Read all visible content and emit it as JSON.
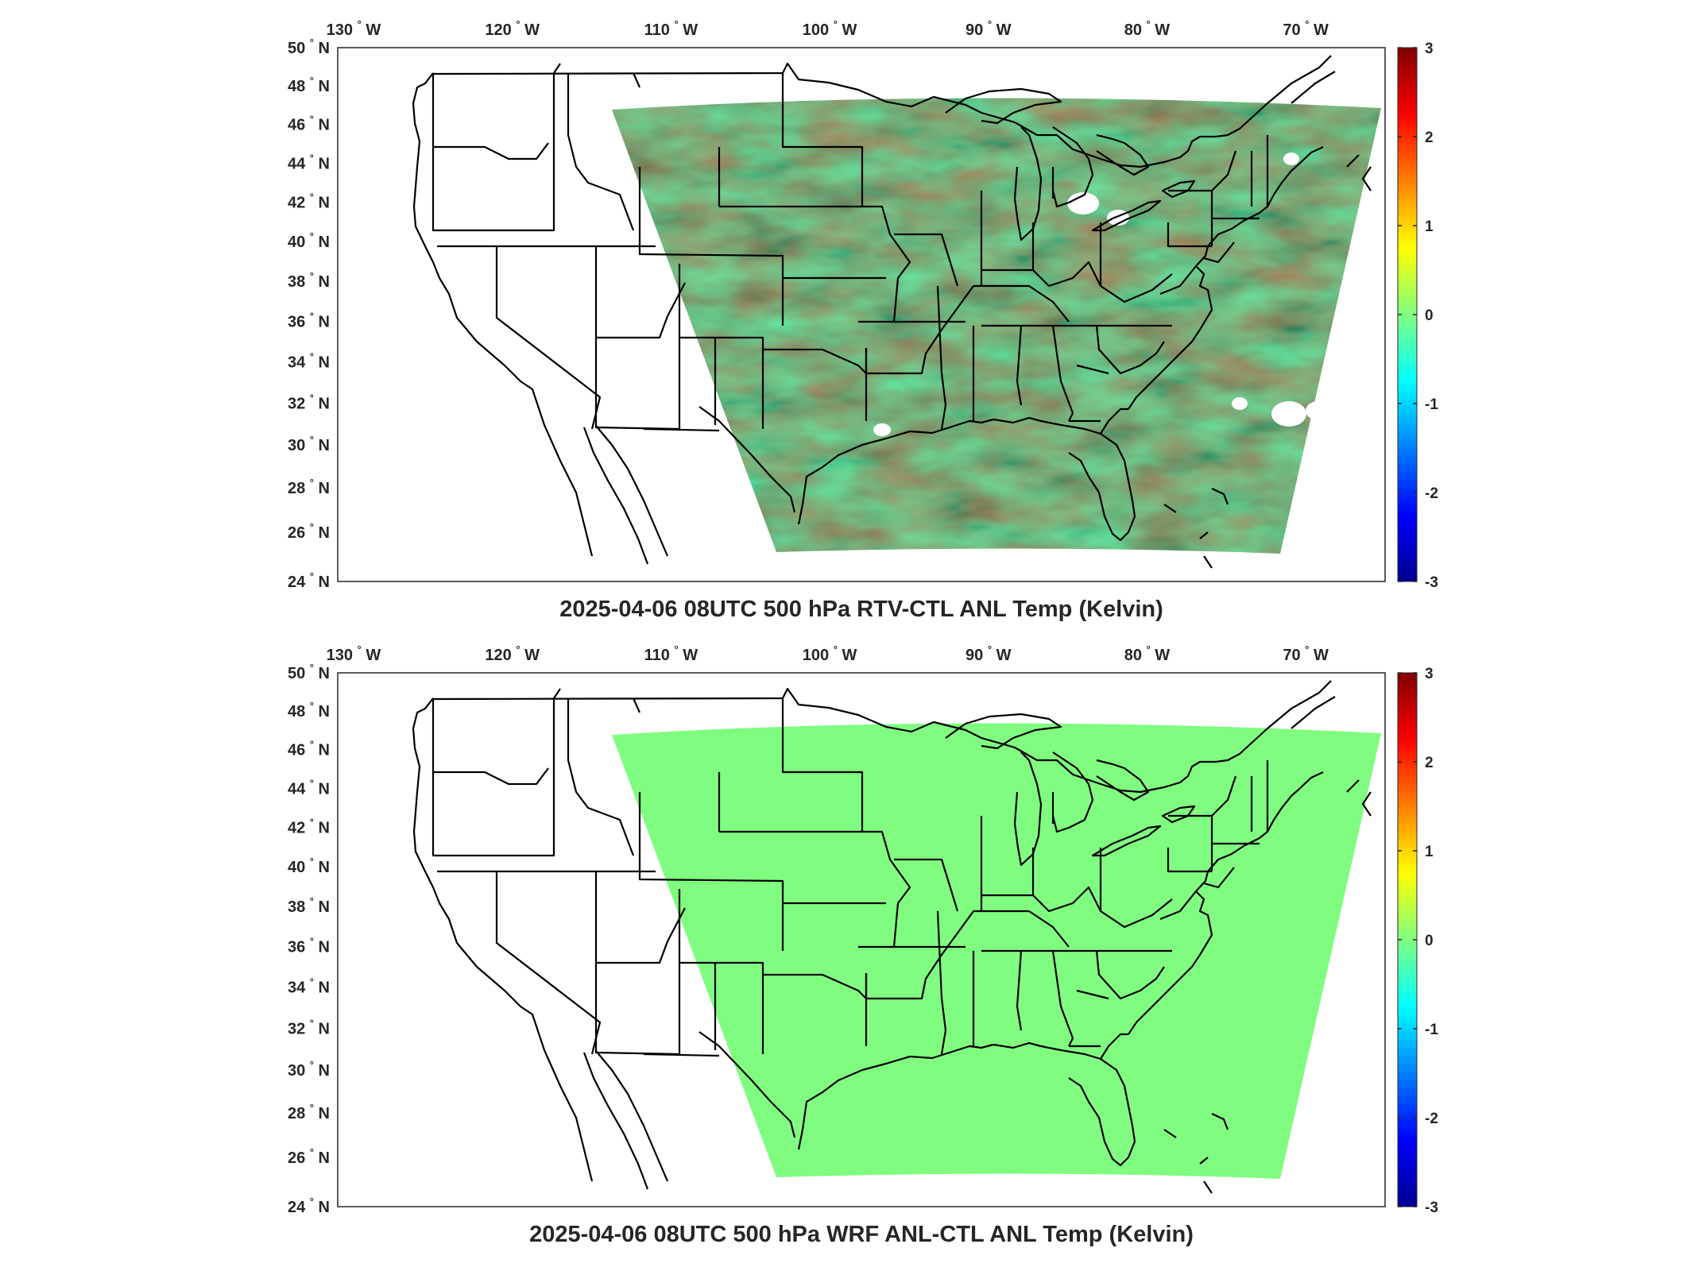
{
  "figure": {
    "panels": [
      {
        "id": "top",
        "title": "2025-04-06 08UTC 500 hPa RTV-CTL ANL Temp (Kelvin)",
        "field_style": "noisy",
        "base_color": "#5ef0a0"
      },
      {
        "id": "bottom",
        "title": "2025-04-06 08UTC 500 hPa WRF ANL-CTL ANL Temp (Kelvin)",
        "field_style": "uniform",
        "base_color": "#80fc80"
      }
    ],
    "lon_ticks": [
      "130",
      "120",
      "110",
      "100",
      "90",
      "80",
      "70"
    ],
    "lon_hemisphere": "W",
    "lat_ticks": [
      "50",
      "48",
      "46",
      "44",
      "42",
      "40",
      "38",
      "36",
      "34",
      "32",
      "30",
      "28",
      "26",
      "24"
    ],
    "lat_hemisphere": "N",
    "degree_symbol": "°",
    "colorbar": {
      "ticks": [
        "3",
        "2",
        "1",
        "0",
        "-1",
        "-2",
        "-3"
      ],
      "range": [
        -3,
        3
      ],
      "colormap": "jet"
    }
  },
  "chart_data": [
    {
      "type": "heatmap",
      "title": "2025-04-06 08UTC 500 hPa RTV-CTL ANL Temp (Kelvin)",
      "xlabel": "",
      "ylabel": "",
      "x_ticks": [
        "130 W",
        "120 W",
        "110 W",
        "100 W",
        "90 W",
        "80 W",
        "70 W"
      ],
      "y_ticks": [
        "50 N",
        "48 N",
        "46 N",
        "44 N",
        "42 N",
        "40 N",
        "38 N",
        "36 N",
        "34 N",
        "32 N",
        "30 N",
        "28 N",
        "26 N",
        "24 N"
      ],
      "xlim": [
        -131,
        -65
      ],
      "ylim": [
        24,
        50
      ],
      "colorbar_range": [
        -3,
        3
      ],
      "colorbar_ticks": [
        3,
        2,
        1,
        0,
        -1,
        -2,
        -3
      ],
      "typical_value_range": [
        -0.6,
        0.6
      ]
    },
    {
      "type": "heatmap",
      "title": "2025-04-06 08UTC 500 hPa WRF ANL-CTL ANL Temp (Kelvin)",
      "xlabel": "",
      "ylabel": "",
      "x_ticks": [
        "130 W",
        "120 W",
        "110 W",
        "100 W",
        "90 W",
        "80 W",
        "70 W"
      ],
      "y_ticks": [
        "50 N",
        "48 N",
        "46 N",
        "44 N",
        "42 N",
        "40 N",
        "38 N",
        "36 N",
        "34 N",
        "32 N",
        "30 N",
        "28 N",
        "26 N",
        "24 N"
      ],
      "xlim": [
        -131,
        -65
      ],
      "ylim": [
        24,
        50
      ],
      "colorbar_range": [
        -3,
        3
      ],
      "colorbar_ticks": [
        3,
        2,
        1,
        0,
        -1,
        -2,
        -3
      ],
      "typical_value_range": [
        0,
        0
      ]
    }
  ]
}
